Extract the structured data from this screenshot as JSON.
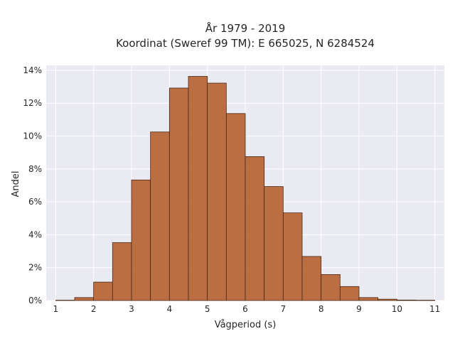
{
  "chart_data": {
    "type": "bar",
    "title_line1": "År 1979 - 2019",
    "title_line2": "Koordinat (Sweref 99 TM): E 665025, N 6284524",
    "xlabel": "Vågperiod (s)",
    "ylabel": "Andel",
    "xlim": [
      0.75,
      11.25
    ],
    "ylim": [
      0,
      14.3
    ],
    "xticks": [
      "1",
      "2",
      "3",
      "4",
      "5",
      "6",
      "7",
      "8",
      "9",
      "10",
      "11"
    ],
    "yticks": [
      "0%",
      "2%",
      "4%",
      "6%",
      "8%",
      "10%",
      "12%",
      "14%"
    ],
    "grid": true,
    "bin_width": 0.5,
    "bin_starts": [
      1.0,
      1.5,
      2.0,
      2.5,
      3.0,
      3.5,
      4.0,
      4.5,
      5.0,
      5.5,
      6.0,
      6.5,
      7.0,
      7.5,
      8.0,
      8.5,
      9.0,
      9.5,
      10.0,
      10.5
    ],
    "values": [
      0.02,
      0.18,
      1.12,
      3.52,
      7.33,
      10.25,
      12.92,
      13.63,
      13.22,
      11.37,
      8.75,
      6.93,
      5.33,
      2.68,
      1.58,
      0.85,
      0.18,
      0.08,
      0.03,
      0.02
    ],
    "unit": "%",
    "bar_color": "#b5612f",
    "bar_edge": "#4a2a18",
    "plot_bg": "#eaeaf2",
    "grid_color": "#ffffff"
  }
}
